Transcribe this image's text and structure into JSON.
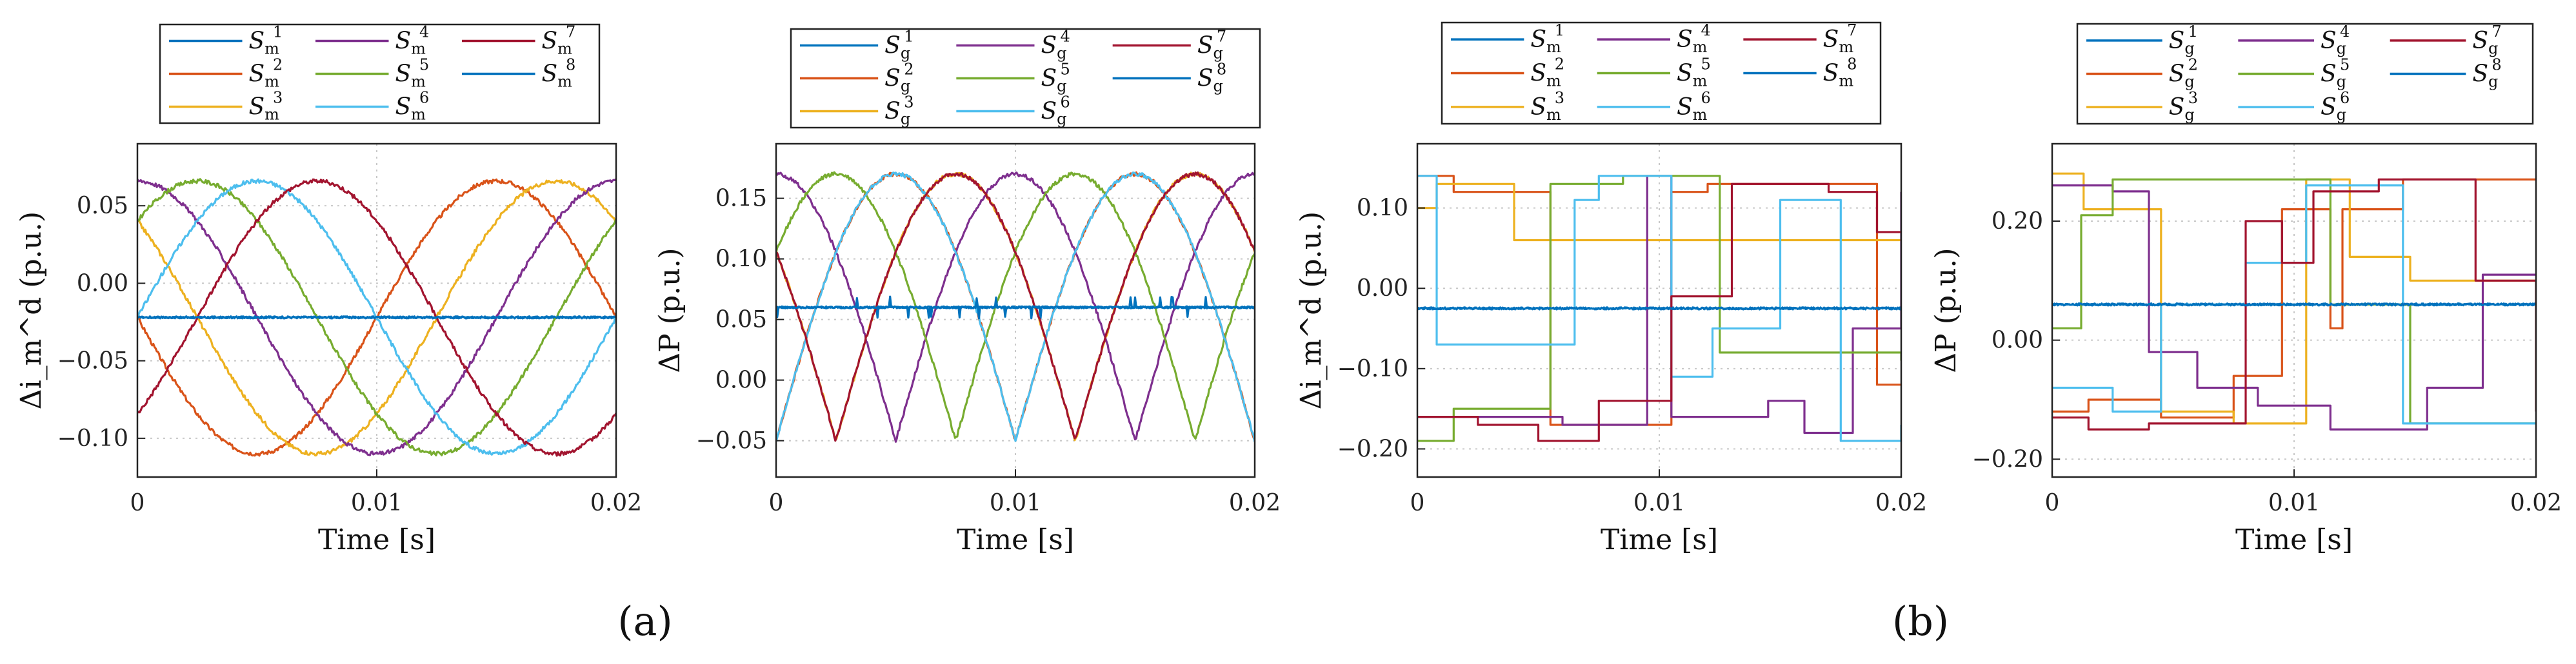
{
  "chart_data": [
    {
      "id": "a-left",
      "type": "line",
      "pattern": "sine",
      "ylabel": "Δi_m^d (p.u.)",
      "xlabel": "Time [s]",
      "xlim": [
        0,
        0.02
      ],
      "ylim": [
        -0.125,
        0.09
      ],
      "xticks": [
        "0",
        "0.01",
        "0.02"
      ],
      "yticks": [
        {
          "v": 0.05,
          "t": "0.05"
        },
        {
          "v": 0.0,
          "t": "0.00"
        },
        {
          "v": -0.05,
          "t": "−0.05"
        },
        {
          "v": -0.1,
          "t": "−0.10"
        }
      ],
      "legend_sub": "m",
      "series": [
        {
          "name": "S_m^1",
          "label": "1",
          "color": "#0072BD",
          "flat": -0.022
        },
        {
          "name": "S_m^2",
          "label": "2",
          "color": "#D95319",
          "offset": -0.022,
          "amp": 0.088,
          "phase_deg": 90
        },
        {
          "name": "S_m^3",
          "label": "3",
          "color": "#EDB120",
          "offset": -0.022,
          "amp": 0.088,
          "phase_deg": 45
        },
        {
          "name": "S_m^4",
          "label": "4",
          "color": "#7E2F8E",
          "offset": -0.022,
          "amp": 0.088,
          "phase_deg": 0
        },
        {
          "name": "S_m^5",
          "label": "5",
          "color": "#77AC30",
          "offset": -0.022,
          "amp": 0.088,
          "phase_deg": 315
        },
        {
          "name": "S_m^6",
          "label": "6",
          "color": "#4DBEEE",
          "offset": -0.022,
          "amp": 0.088,
          "phase_deg": 270
        },
        {
          "name": "S_m^7",
          "label": "7",
          "color": "#A2142F",
          "offset": -0.022,
          "amp": 0.088,
          "phase_deg": 225
        },
        {
          "name": "S_m^8",
          "label": "8",
          "color": "#0072BD",
          "flat": -0.022
        }
      ]
    },
    {
      "id": "a-right",
      "type": "line",
      "pattern": "abs",
      "ylabel": "ΔP (p.u.)",
      "xlabel": "Time [s]",
      "xlim": [
        0,
        0.02
      ],
      "ylim": [
        -0.08,
        0.195
      ],
      "xticks": [
        "0",
        "0.01",
        "0.02"
      ],
      "yticks": [
        {
          "v": 0.15,
          "t": "0.15"
        },
        {
          "v": 0.1,
          "t": "0.10"
        },
        {
          "v": 0.05,
          "t": "0.05"
        },
        {
          "v": 0.0,
          "t": "0.00"
        },
        {
          "v": -0.05,
          "t": "−0.05"
        }
      ],
      "legend_sub": "g",
      "series": [
        {
          "name": "S_g^1",
          "label": "1",
          "color": "#0072BD",
          "flat": 0.06
        },
        {
          "name": "S_g^2",
          "label": "2",
          "color": "#D95319",
          "offset": 0.06,
          "amp": 0.11,
          "phase_deg": 90
        },
        {
          "name": "S_g^3",
          "label": "3",
          "color": "#EDB120",
          "offset": 0.06,
          "amp": 0.11,
          "phase_deg": 45
        },
        {
          "name": "S_g^4",
          "label": "4",
          "color": "#7E2F8E",
          "offset": 0.06,
          "amp": 0.11,
          "phase_deg": 0
        },
        {
          "name": "S_g^5",
          "label": "5",
          "color": "#77AC30",
          "offset": 0.06,
          "amp": 0.11,
          "phase_deg": 315
        },
        {
          "name": "S_g^6",
          "label": "6",
          "color": "#4DBEEE",
          "offset": 0.06,
          "amp": 0.11,
          "phase_deg": 270
        },
        {
          "name": "S_g^7",
          "label": "7",
          "color": "#A2142F",
          "offset": 0.06,
          "amp": 0.11,
          "phase_deg": 225
        },
        {
          "name": "S_g^8",
          "label": "8",
          "color": "#0072BD",
          "flat": 0.06
        }
      ]
    },
    {
      "id": "b-left",
      "type": "line",
      "pattern": "step",
      "ylabel": "Δi_m^d (p.u.)",
      "xlabel": "Time [s]",
      "xlim": [
        0,
        0.02
      ],
      "ylim": [
        -0.235,
        0.18
      ],
      "xticks": [
        "0",
        "0.01",
        "0.02"
      ],
      "yticks": [
        {
          "v": 0.1,
          "t": "0.10"
        },
        {
          "v": 0.0,
          "t": "0.00"
        },
        {
          "v": -0.1,
          "t": "−0.10"
        },
        {
          "v": -0.2,
          "t": "−0.20"
        }
      ],
      "legend_sub": "m",
      "series": [
        {
          "name": "S_m^1",
          "label": "1",
          "color": "#0072BD",
          "flat": -0.025
        },
        {
          "name": "S_m^2",
          "label": "2",
          "color": "#D95319",
          "steps": [
            [
              0,
              0.14
            ],
            [
              0.0015,
              0.12
            ],
            [
              0.0055,
              -0.17
            ],
            [
              0.0105,
              0.12
            ],
            [
              0.012,
              0.13
            ],
            [
              0.018,
              0.13
            ],
            [
              0.019,
              -0.12
            ]
          ]
        },
        {
          "name": "S_m^3",
          "label": "3",
          "color": "#EDB120",
          "steps": [
            [
              0,
              0.1
            ],
            [
              0.0008,
              0.13
            ],
            [
              0.004,
              0.06
            ],
            [
              0.02,
              0.06
            ]
          ]
        },
        {
          "name": "S_m^4",
          "label": "4",
          "color": "#7E2F8E",
          "steps": [
            [
              0,
              -0.16
            ],
            [
              0.006,
              -0.17
            ],
            [
              0.0095,
              0.14
            ],
            [
              0.0105,
              -0.16
            ],
            [
              0.0145,
              -0.14
            ],
            [
              0.016,
              -0.18
            ],
            [
              0.018,
              -0.05
            ],
            [
              0.02,
              0.12
            ]
          ]
        },
        {
          "name": "S_m^5",
          "label": "5",
          "color": "#77AC30",
          "steps": [
            [
              0,
              -0.19
            ],
            [
              0.0015,
              -0.15
            ],
            [
              0.0055,
              0.13
            ],
            [
              0.0085,
              0.14
            ],
            [
              0.0125,
              -0.08
            ],
            [
              0.02,
              -0.09
            ]
          ]
        },
        {
          "name": "S_m^6",
          "label": "6",
          "color": "#4DBEEE",
          "steps": [
            [
              0,
              0.14
            ],
            [
              0.0008,
              -0.07
            ],
            [
              0.0065,
              0.11
            ],
            [
              0.0075,
              0.14
            ],
            [
              0.0105,
              -0.11
            ],
            [
              0.0122,
              -0.05
            ],
            [
              0.015,
              0.11
            ],
            [
              0.0175,
              -0.19
            ],
            [
              0.02,
              -0.17
            ]
          ]
        },
        {
          "name": "S_m^7",
          "label": "7",
          "color": "#A2142F",
          "steps": [
            [
              0,
              -0.16
            ],
            [
              0.0025,
              -0.17
            ],
            [
              0.005,
              -0.19
            ],
            [
              0.0075,
              -0.14
            ],
            [
              0.0105,
              -0.01
            ],
            [
              0.013,
              0.13
            ],
            [
              0.017,
              0.12
            ],
            [
              0.019,
              0.07
            ]
          ]
        },
        {
          "name": "S_m^8",
          "label": "8",
          "color": "#0072BD",
          "flat": -0.025
        }
      ]
    },
    {
      "id": "b-right",
      "type": "line",
      "pattern": "step",
      "ylabel": "ΔP (p.u.)",
      "xlabel": "Time [s]",
      "xlim": [
        0,
        0.02
      ],
      "ylim": [
        -0.23,
        0.33
      ],
      "xticks": [
        "0",
        "0.01",
        "0.02"
      ],
      "yticks": [
        {
          "v": 0.2,
          "t": "0.20"
        },
        {
          "v": 0.0,
          "t": "0.00"
        },
        {
          "v": -0.2,
          "t": "−0.20"
        }
      ],
      "legend_sub": "g",
      "series": [
        {
          "name": "S_g^1",
          "label": "1",
          "color": "#0072BD",
          "flat": 0.06
        },
        {
          "name": "S_g^2",
          "label": "2",
          "color": "#D95319",
          "steps": [
            [
              0,
              -0.12
            ],
            [
              0.0015,
              -0.1
            ],
            [
              0.0045,
              -0.13
            ],
            [
              0.0075,
              -0.06
            ],
            [
              0.0095,
              0.22
            ],
            [
              0.0115,
              0.02
            ],
            [
              0.012,
              0.22
            ],
            [
              0.0145,
              0.27
            ],
            [
              0.02,
              0.27
            ]
          ]
        },
        {
          "name": "S_g^3",
          "label": "3",
          "color": "#EDB120",
          "steps": [
            [
              0,
              0.28
            ],
            [
              0.0013,
              0.22
            ],
            [
              0.0045,
              -0.12
            ],
            [
              0.0075,
              -0.14
            ],
            [
              0.0105,
              0.27
            ],
            [
              0.0123,
              0.14
            ],
            [
              0.0148,
              0.1
            ],
            [
              0.02,
              0.1
            ]
          ]
        },
        {
          "name": "S_g^4",
          "label": "4",
          "color": "#7E2F8E",
          "steps": [
            [
              0,
              0.26
            ],
            [
              0.0025,
              0.25
            ],
            [
              0.004,
              -0.02
            ],
            [
              0.006,
              -0.08
            ],
            [
              0.0085,
              -0.11
            ],
            [
              0.0115,
              -0.15
            ],
            [
              0.0155,
              -0.08
            ],
            [
              0.0178,
              0.11
            ],
            [
              0.02,
              0.11
            ]
          ]
        },
        {
          "name": "S_g^5",
          "label": "5",
          "color": "#77AC30",
          "steps": [
            [
              0,
              0.02
            ],
            [
              0.0012,
              0.21
            ],
            [
              0.0025,
              0.27
            ],
            [
              0.0095,
              0.27
            ],
            [
              0.0115,
              0.06
            ],
            [
              0.0148,
              -0.14
            ],
            [
              0.02,
              -0.14
            ]
          ]
        },
        {
          "name": "S_g^6",
          "label": "6",
          "color": "#4DBEEE",
          "steps": [
            [
              0,
              -0.08
            ],
            [
              0.0025,
              -0.12
            ],
            [
              0.0045,
              0.06
            ],
            [
              0.008,
              0.13
            ],
            [
              0.0105,
              0.26
            ],
            [
              0.0145,
              -0.14
            ],
            [
              0.02,
              -0.14
            ]
          ]
        },
        {
          "name": "S_g^7",
          "label": "7",
          "color": "#A2142F",
          "steps": [
            [
              0,
              -0.13
            ],
            [
              0.0015,
              -0.15
            ],
            [
              0.004,
              -0.14
            ],
            [
              0.008,
              0.2
            ],
            [
              0.0095,
              0.13
            ],
            [
              0.0108,
              0.25
            ],
            [
              0.0135,
              0.27
            ],
            [
              0.0175,
              0.1
            ],
            [
              0.02,
              -0.12
            ]
          ]
        },
        {
          "name": "S_g^8",
          "label": "8",
          "color": "#0072BD",
          "flat": 0.06
        }
      ]
    }
  ],
  "panel_labels": {
    "a": "(a)",
    "b": "(b)"
  }
}
